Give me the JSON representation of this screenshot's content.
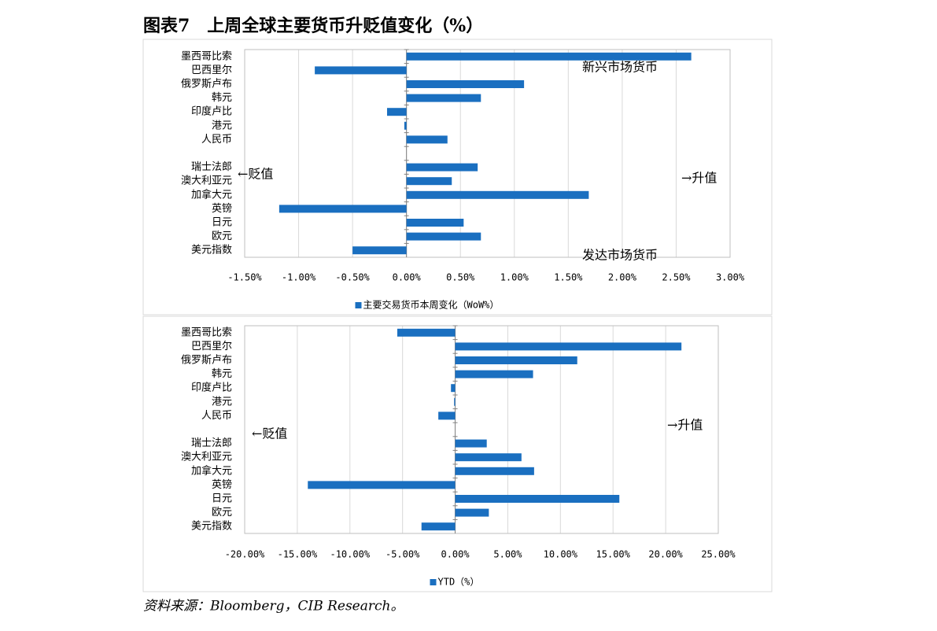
{
  "title": "图表7　上周全球主要货币升贬值变化（%）",
  "source": "资料来源：Bloomberg，CIB Research。",
  "chart_data": [
    {
      "type": "bar",
      "orientation": "horizontal",
      "categories": [
        "墨西哥比索",
        "巴西里尔",
        "俄罗斯卢布",
        "韩元",
        "印度卢比",
        "港元",
        "人民币",
        null,
        "瑞士法郎",
        "澳大利亚元",
        "加拿大元",
        "英镑",
        "日元",
        "欧元",
        "美元指数"
      ],
      "series": [
        {
          "name": "主要交易货币本周变化（WoW%）",
          "color": "#1a6fc0",
          "values": [
            2.64,
            -0.85,
            1.09,
            0.69,
            -0.18,
            -0.02,
            0.38,
            null,
            0.66,
            0.42,
            1.69,
            -1.18,
            0.53,
            0.69,
            -0.5
          ]
        }
      ],
      "xlim": [
        -1.5,
        3
      ],
      "xticks": [
        {
          "value": -1.5,
          "label": "-1.50%"
        },
        {
          "value": -1,
          "label": "-1.00%"
        },
        {
          "value": -0.5,
          "label": "-0.50%"
        },
        {
          "value": 0,
          "label": "0.00%"
        },
        {
          "value": 0.5,
          "label": "0.50%"
        },
        {
          "value": 1,
          "label": "1.00%"
        },
        {
          "value": 1.5,
          "label": "1.50%"
        },
        {
          "value": 2,
          "label": "2.00%"
        },
        {
          "value": 2.5,
          "label": "2.50%"
        },
        {
          "value": 3,
          "label": "3.00%"
        }
      ],
      "grid": true,
      "legend": "bottom",
      "annotations": [
        "新兴市场货币",
        "发达市场货币",
        "←贬值",
        "→升值"
      ]
    },
    {
      "type": "bar",
      "orientation": "horizontal",
      "categories": [
        "墨西哥比索",
        "巴西里尔",
        "俄罗斯卢布",
        "韩元",
        "印度卢比",
        "港元",
        "人民币",
        null,
        "瑞士法郎",
        "澳大利亚元",
        "加拿大元",
        "英镑",
        "日元",
        "欧元",
        "美元指数"
      ],
      "series": [
        {
          "name": "YTD（%）",
          "color": "#1a6fc0",
          "values": [
            -5.5,
            21.5,
            11.6,
            7.4,
            -0.4,
            -0.1,
            -1.6,
            null,
            3.0,
            6.3,
            7.5,
            -14.0,
            15.6,
            3.2,
            -3.2
          ]
        }
      ],
      "xlim": [
        -20,
        25
      ],
      "xticks": [
        {
          "value": -20,
          "label": "-20.00%"
        },
        {
          "value": -15,
          "label": "-15.00%"
        },
        {
          "value": -10,
          "label": "-10.00%"
        },
        {
          "value": -5,
          "label": "-5.00%"
        },
        {
          "value": 0,
          "label": "0.00%"
        },
        {
          "value": 5,
          "label": "5.00%"
        },
        {
          "value": 10,
          "label": "10.00%"
        },
        {
          "value": 15,
          "label": "15.00%"
        },
        {
          "value": 20,
          "label": "20.00%"
        },
        {
          "value": 25,
          "label": "25.00%"
        }
      ],
      "grid": true,
      "legend": "bottom",
      "annotations": [
        "←贬值",
        "→升值"
      ]
    }
  ]
}
